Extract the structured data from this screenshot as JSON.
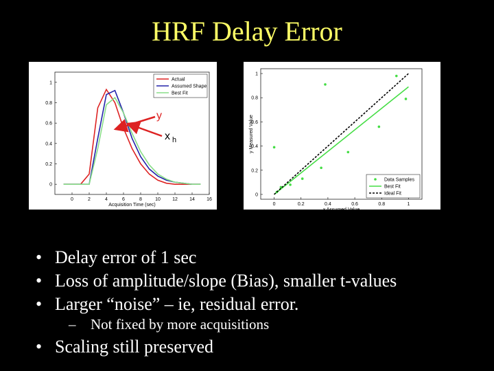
{
  "title": "HRF Delay Error",
  "chart_data": [
    {
      "type": "line",
      "xlabel": "Acquisition Time (sec)",
      "x": [
        -1,
        0,
        1,
        2,
        3,
        4,
        5,
        6,
        7,
        8,
        9,
        10,
        11,
        12,
        13,
        14,
        15
      ],
      "series": [
        {
          "name": "Actual",
          "color": "#dd2222",
          "values": [
            0,
            0,
            0,
            0.1,
            0.75,
            0.93,
            0.8,
            0.55,
            0.35,
            0.2,
            0.1,
            0.04,
            0.01,
            0,
            0,
            0,
            0
          ]
        },
        {
          "name": "Assumed Shape",
          "color": "#2222aa",
          "values": [
            0,
            0,
            0,
            0,
            0.45,
            0.88,
            0.92,
            0.7,
            0.45,
            0.27,
            0.15,
            0.08,
            0.04,
            0.02,
            0.01,
            0,
            0
          ]
        },
        {
          "name": "Best Fit",
          "color": "#88dd88",
          "values": [
            0,
            0,
            0,
            0,
            0.35,
            0.78,
            0.85,
            0.7,
            0.5,
            0.32,
            0.19,
            0.1,
            0.05,
            0.02,
            0.01,
            0,
            0
          ]
        }
      ],
      "xlim": [
        -2,
        16
      ],
      "xticks": [
        0,
        2,
        4,
        6,
        8,
        10,
        12,
        14,
        16
      ],
      "ylim": [
        -0.1,
        1.1
      ],
      "yticks": [
        0,
        0.2,
        0.4,
        0.6,
        0.8,
        1
      ],
      "legend": "upper-right",
      "annotations": [
        {
          "text": "y"
        },
        {
          "text": "x",
          "sub": "h"
        }
      ]
    },
    {
      "type": "scatter",
      "xlabel": "x Assumed Value",
      "ylabel": "y Measured Value",
      "series": [
        {
          "name": "Data Samples",
          "kind": "scatter",
          "color": "#44dd44",
          "x": [
            0,
            0.02,
            0.05,
            0.12,
            0.21,
            0.35,
            0.38,
            0.55,
            0.78,
            0.91,
            0.98
          ],
          "values": [
            0.39,
            0.02,
            0.06,
            0.08,
            0.13,
            0.22,
            0.91,
            0.35,
            0.56,
            0.98,
            0.79
          ]
        },
        {
          "name": "Best Fit",
          "kind": "line",
          "color": "#44dd44",
          "x": [
            0,
            1
          ],
          "values": [
            0,
            0.89
          ]
        },
        {
          "name": "Ideal Fit",
          "kind": "line",
          "color": "#000000",
          "dash": true,
          "x": [
            0,
            1
          ],
          "values": [
            0,
            1
          ]
        }
      ],
      "xlim": [
        -0.1,
        1.1
      ],
      "xticks": [
        0,
        0.2,
        0.4,
        0.6,
        0.8,
        1
      ],
      "ylim": [
        -0.04,
        1.04
      ],
      "yticks": [
        0,
        0.2,
        0.4,
        0.6,
        0.8,
        1
      ],
      "legend": "lower-right"
    }
  ],
  "bullets": [
    {
      "text": "Delay error of 1 sec"
    },
    {
      "text": "Loss of amplitude/slope (Bias), smaller t-values"
    },
    {
      "text": "Larger “noise” – ie, residual error."
    },
    {
      "text": "Not fixed by more acquisitions",
      "level": 2
    },
    {
      "text": "Scaling still preserved"
    }
  ]
}
